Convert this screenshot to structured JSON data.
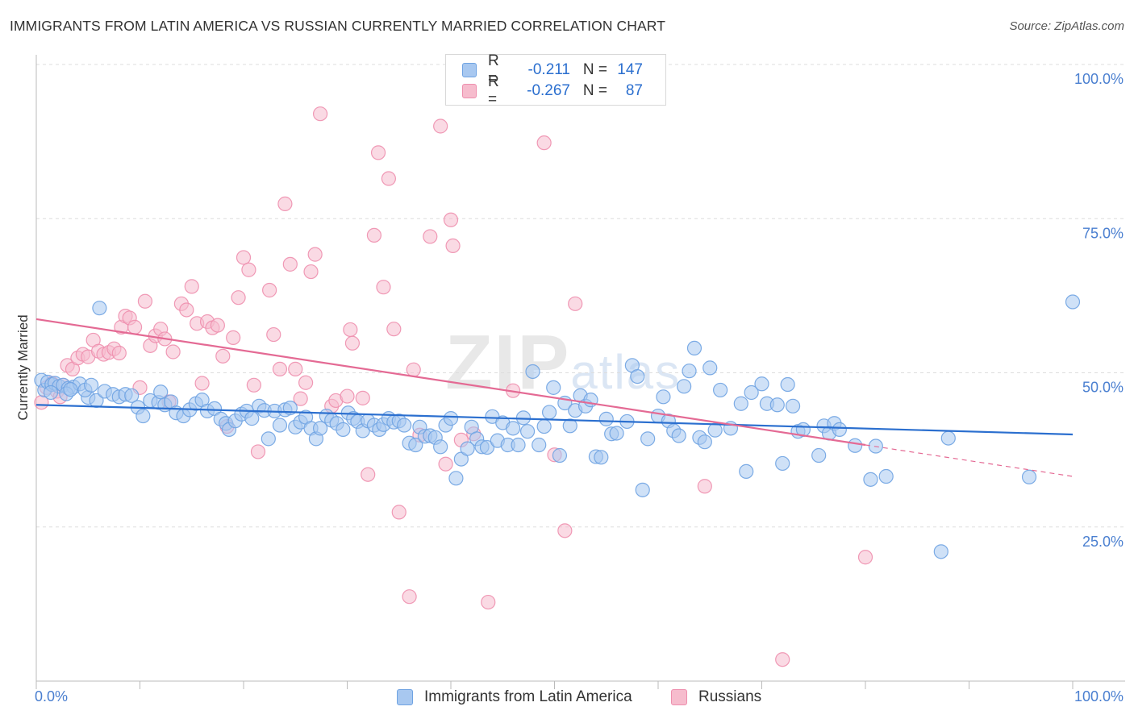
{
  "title": "IMMIGRANTS FROM LATIN AMERICA VS RUSSIAN CURRENTLY MARRIED CORRELATION CHART",
  "source": "Source: ZipAtlas.com",
  "watermark": {
    "zip": "ZIP",
    "atlas": "atlas"
  },
  "colors": {
    "blue_fill": "#a8c8f0",
    "blue_stroke": "#6fa3e2",
    "blue_line": "#2b6fcf",
    "pink_fill": "#f6bccd",
    "pink_stroke": "#ee8fae",
    "pink_line": "#e46a94",
    "tick_text": "#4a7fd0",
    "grid": "#dddddd"
  },
  "legend_top": {
    "rows": [
      {
        "r_label": "R =",
        "r_value": "-0.211",
        "n_label": "N =",
        "n_value": "147"
      },
      {
        "r_label": "R =",
        "r_value": "-0.267",
        "n_label": "N =",
        "n_value": "87"
      }
    ]
  },
  "legend_bottom": {
    "items": [
      {
        "label": "Immigrants from Latin America"
      },
      {
        "label": "Russians"
      }
    ]
  },
  "chart_data": {
    "type": "scatter",
    "title": "IMMIGRANTS FROM LATIN AMERICA VS RUSSIAN CURRENTLY MARRIED CORRELATION CHART",
    "xlabel": "",
    "ylabel": "Currently Married",
    "xlim": [
      0,
      100
    ],
    "ylim": [
      0,
      100
    ],
    "x_tick_labels": [
      "0.0%",
      "100.0%"
    ],
    "y_ticks": [
      25,
      50,
      75,
      100
    ],
    "y_tick_labels": [
      "25.0%",
      "50.0%",
      "75.0%",
      "100.0%"
    ],
    "grid": true,
    "legend_position": "top-center",
    "series": [
      {
        "name": "Immigrants from Latin America",
        "r": -0.211,
        "n": 147,
        "trend": {
          "x": [
            0,
            100
          ],
          "y": [
            44.8,
            40.0
          ]
        },
        "points": [
          [
            0.5,
            48.8
          ],
          [
            0.8,
            47.2
          ],
          [
            1.1,
            48.5
          ],
          [
            1.5,
            48.1
          ],
          [
            1.8,
            48.3
          ],
          [
            2.2,
            47.8
          ],
          [
            2.6,
            48.0
          ],
          [
            3.1,
            47.5
          ],
          [
            3.6,
            47.7
          ],
          [
            4.2,
            48.2
          ],
          [
            5.0,
            46.0
          ],
          [
            5.8,
            45.5
          ],
          [
            6.6,
            47.0
          ],
          [
            7.4,
            46.5
          ],
          [
            8.0,
            46.1
          ],
          [
            8.6,
            46.5
          ],
          [
            9.2,
            46.3
          ],
          [
            9.8,
            44.4
          ],
          [
            10.3,
            43.0
          ],
          [
            11.0,
            45.5
          ],
          [
            11.8,
            45.2
          ],
          [
            12.4,
            44.8
          ],
          [
            13.0,
            45.3
          ],
          [
            13.5,
            43.5
          ],
          [
            14.2,
            43.0
          ],
          [
            14.8,
            44.0
          ],
          [
            15.4,
            45.0
          ],
          [
            16.0,
            45.6
          ],
          [
            16.5,
            43.8
          ],
          [
            17.2,
            44.2
          ],
          [
            17.8,
            42.5
          ],
          [
            18.3,
            41.8
          ],
          [
            18.6,
            40.8
          ],
          [
            19.2,
            42.2
          ],
          [
            19.8,
            43.3
          ],
          [
            20.3,
            43.8
          ],
          [
            20.8,
            42.6
          ],
          [
            21.5,
            44.6
          ],
          [
            22.0,
            43.9
          ],
          [
            22.4,
            39.3
          ],
          [
            23.0,
            43.8
          ],
          [
            23.5,
            41.5
          ],
          [
            24.0,
            44.0
          ],
          [
            24.5,
            44.3
          ],
          [
            25.0,
            41.2
          ],
          [
            25.5,
            42.0
          ],
          [
            26.0,
            42.8
          ],
          [
            26.5,
            41.0
          ],
          [
            27.0,
            39.3
          ],
          [
            27.4,
            41.0
          ],
          [
            28.0,
            43.0
          ],
          [
            28.5,
            42.3
          ],
          [
            29.0,
            41.8
          ],
          [
            29.6,
            40.8
          ],
          [
            30.1,
            43.5
          ],
          [
            30.6,
            42.6
          ],
          [
            31.0,
            42.1
          ],
          [
            31.5,
            40.6
          ],
          [
            32.0,
            42.2
          ],
          [
            32.6,
            41.5
          ],
          [
            33.1,
            40.8
          ],
          [
            33.5,
            41.6
          ],
          [
            34.0,
            42.6
          ],
          [
            34.5,
            42.0
          ],
          [
            35.0,
            42.2
          ],
          [
            35.5,
            41.5
          ],
          [
            36.0,
            38.6
          ],
          [
            36.6,
            38.3
          ],
          [
            37.0,
            41.2
          ],
          [
            37.5,
            39.7
          ],
          [
            38.0,
            39.8
          ],
          [
            38.5,
            39.5
          ],
          [
            39.0,
            38.0
          ],
          [
            39.5,
            41.5
          ],
          [
            40.0,
            42.6
          ],
          [
            40.5,
            32.9
          ],
          [
            41.0,
            36.0
          ],
          [
            41.6,
            37.7
          ],
          [
            42.0,
            41.2
          ],
          [
            42.5,
            39.3
          ],
          [
            43.0,
            38.0
          ],
          [
            43.5,
            37.9
          ],
          [
            44.0,
            42.9
          ],
          [
            44.5,
            39.0
          ],
          [
            45.0,
            41.9
          ],
          [
            45.5,
            38.3
          ],
          [
            46.0,
            41.0
          ],
          [
            46.5,
            38.3
          ],
          [
            47.0,
            42.7
          ],
          [
            47.4,
            40.5
          ],
          [
            47.9,
            50.2
          ],
          [
            48.5,
            38.3
          ],
          [
            49.0,
            41.3
          ],
          [
            49.5,
            43.6
          ],
          [
            49.9,
            47.6
          ],
          [
            50.5,
            36.6
          ],
          [
            51.0,
            45.1
          ],
          [
            51.5,
            41.4
          ],
          [
            52.0,
            43.9
          ],
          [
            52.5,
            46.3
          ],
          [
            53.0,
            44.6
          ],
          [
            53.5,
            45.6
          ],
          [
            54.0,
            36.4
          ],
          [
            54.5,
            36.3
          ],
          [
            55.0,
            42.5
          ],
          [
            55.5,
            40.1
          ],
          [
            56.0,
            40.2
          ],
          [
            57.0,
            42.1
          ],
          [
            57.5,
            51.2
          ],
          [
            58.0,
            49.4
          ],
          [
            58.5,
            31.0
          ],
          [
            59.0,
            39.3
          ],
          [
            60.0,
            43.0
          ],
          [
            60.5,
            46.1
          ],
          [
            61.0,
            42.2
          ],
          [
            61.5,
            40.6
          ],
          [
            62.0,
            39.8
          ],
          [
            62.5,
            47.8
          ],
          [
            63.0,
            50.3
          ],
          [
            63.5,
            54.0
          ],
          [
            64.0,
            39.5
          ],
          [
            64.5,
            38.8
          ],
          [
            65.0,
            50.8
          ],
          [
            65.5,
            40.7
          ],
          [
            66.0,
            47.2
          ],
          [
            67.0,
            41.0
          ],
          [
            68.0,
            45.0
          ],
          [
            68.5,
            34.0
          ],
          [
            69.0,
            46.8
          ],
          [
            70.0,
            48.2
          ],
          [
            70.5,
            45.0
          ],
          [
            71.5,
            44.8
          ],
          [
            72.0,
            35.3
          ],
          [
            72.5,
            48.1
          ],
          [
            73.0,
            44.6
          ],
          [
            73.5,
            40.5
          ],
          [
            74.0,
            40.8
          ],
          [
            75.5,
            36.6
          ],
          [
            76.0,
            41.4
          ],
          [
            76.5,
            40.2
          ],
          [
            77.0,
            41.8
          ],
          [
            77.5,
            40.8
          ],
          [
            79.0,
            38.2
          ],
          [
            80.5,
            32.7
          ],
          [
            81.0,
            38.1
          ],
          [
            82.0,
            33.2
          ],
          [
            87.3,
            21.0
          ],
          [
            88.0,
            39.4
          ],
          [
            95.8,
            33.1
          ],
          [
            100.0,
            61.5
          ],
          [
            6.1,
            60.5
          ],
          [
            1.4,
            46.8
          ],
          [
            2.9,
            46.6
          ],
          [
            3.3,
            47.3
          ],
          [
            4.7,
            47.2
          ],
          [
            5.3,
            48.0
          ],
          [
            12.0,
            46.9
          ]
        ]
      },
      {
        "name": "Russians",
        "r": -0.267,
        "n": 87,
        "trend": {
          "x": [
            0,
            80
          ],
          "y": [
            58.7,
            38.3
          ],
          "dashed_to": {
            "x": 100,
            "y": 33.2
          }
        },
        "points": [
          [
            0.5,
            45.2
          ],
          [
            1.0,
            47.6
          ],
          [
            1.5,
            48.3
          ],
          [
            2.0,
            47.0
          ],
          [
            2.3,
            46.1
          ],
          [
            2.6,
            48.0
          ],
          [
            3.0,
            51.2
          ],
          [
            3.5,
            50.6
          ],
          [
            4.0,
            52.4
          ],
          [
            4.5,
            53.0
          ],
          [
            5.0,
            52.6
          ],
          [
            5.5,
            55.3
          ],
          [
            6.0,
            53.5
          ],
          [
            6.5,
            53.0
          ],
          [
            7.0,
            53.3
          ],
          [
            7.5,
            53.9
          ],
          [
            8.0,
            53.2
          ],
          [
            8.2,
            57.4
          ],
          [
            8.6,
            59.2
          ],
          [
            9.0,
            58.9
          ],
          [
            9.5,
            57.4
          ],
          [
            10.0,
            47.6
          ],
          [
            10.5,
            61.6
          ],
          [
            11.0,
            54.4
          ],
          [
            11.5,
            56.0
          ],
          [
            12.0,
            57.1
          ],
          [
            12.4,
            55.5
          ],
          [
            12.8,
            45.3
          ],
          [
            13.2,
            53.4
          ],
          [
            14.0,
            61.2
          ],
          [
            14.5,
            60.2
          ],
          [
            15.0,
            64.0
          ],
          [
            15.5,
            58.0
          ],
          [
            16.0,
            48.3
          ],
          [
            16.5,
            58.3
          ],
          [
            17.0,
            57.3
          ],
          [
            17.5,
            57.7
          ],
          [
            18.0,
            52.7
          ],
          [
            18.4,
            41.3
          ],
          [
            19.0,
            55.7
          ],
          [
            19.5,
            62.2
          ],
          [
            20.0,
            68.7
          ],
          [
            20.5,
            66.7
          ],
          [
            21.0,
            48.0
          ],
          [
            21.4,
            37.2
          ],
          [
            22.5,
            63.4
          ],
          [
            22.9,
            56.2
          ],
          [
            23.5,
            50.6
          ],
          [
            24.0,
            77.4
          ],
          [
            24.5,
            67.6
          ],
          [
            25.0,
            50.6
          ],
          [
            25.5,
            45.8
          ],
          [
            26.0,
            48.4
          ],
          [
            26.5,
            66.4
          ],
          [
            26.9,
            69.2
          ],
          [
            27.4,
            92.0
          ],
          [
            28.5,
            44.6
          ],
          [
            28.9,
            45.5
          ],
          [
            30.0,
            46.2
          ],
          [
            30.3,
            57.0
          ],
          [
            30.5,
            54.8
          ],
          [
            31.5,
            45.9
          ],
          [
            32.0,
            33.5
          ],
          [
            32.6,
            72.3
          ],
          [
            33.0,
            85.7
          ],
          [
            33.5,
            63.9
          ],
          [
            34.0,
            81.5
          ],
          [
            34.5,
            57.1
          ],
          [
            35.0,
            27.4
          ],
          [
            36.0,
            13.7
          ],
          [
            36.4,
            50.5
          ],
          [
            37.0,
            39.9
          ],
          [
            38.0,
            72.1
          ],
          [
            39.0,
            90.0
          ],
          [
            39.5,
            35.2
          ],
          [
            40.0,
            74.8
          ],
          [
            40.2,
            70.6
          ],
          [
            41.0,
            39.1
          ],
          [
            42.2,
            40.1
          ],
          [
            43.6,
            12.8
          ],
          [
            46.0,
            47.1
          ],
          [
            49.0,
            87.3
          ],
          [
            50.0,
            36.7
          ],
          [
            51.0,
            24.4
          ],
          [
            52.0,
            61.2
          ],
          [
            64.5,
            31.6
          ],
          [
            72.0,
            3.5
          ],
          [
            80.0,
            20.1
          ]
        ]
      }
    ]
  }
}
